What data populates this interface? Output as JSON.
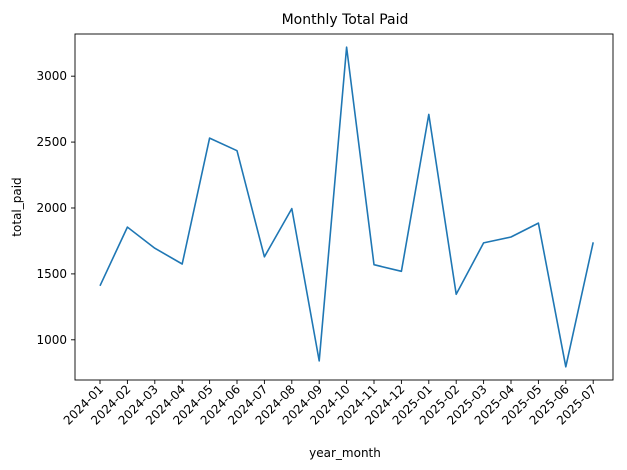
{
  "chart_data": {
    "type": "line",
    "title": "Monthly Total Paid",
    "xlabel": "year_month",
    "ylabel": "total_paid",
    "categories": [
      "2024-01",
      "2024-02",
      "2024-03",
      "2024-04",
      "2024-05",
      "2024-06",
      "2024-07",
      "2024-08",
      "2024-09",
      "2024-10",
      "2024-11",
      "2024-12",
      "2025-01",
      "2025-02",
      "2025-03",
      "2025-04",
      "2025-05",
      "2025-06",
      "2025-07"
    ],
    "series": [
      {
        "values": [
          1410,
          1855,
          1695,
          1575,
          2530,
          2435,
          1630,
          1995,
          840,
          3220,
          1570,
          1520,
          2710,
          1345,
          1735,
          1780,
          1885,
          795,
          1740
        ]
      }
    ],
    "ylim": [
      695,
      3320
    ],
    "yticks": [
      1000,
      1500,
      2000,
      2500,
      3000
    ],
    "grid": false,
    "line_color": "#1f77b4"
  }
}
